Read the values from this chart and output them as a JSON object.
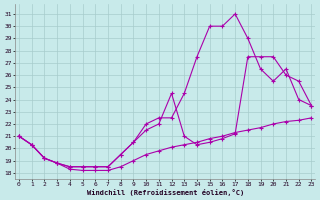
{
  "xlabel": "Windchill (Refroidissement éolien,°C)",
  "bg_color": "#c8eaea",
  "grid_color": "#a8cccc",
  "line_color": "#aa00aa",
  "x_ticks": [
    0,
    1,
    2,
    3,
    4,
    5,
    6,
    7,
    8,
    9,
    10,
    11,
    12,
    13,
    14,
    15,
    16,
    17,
    18,
    19,
    20,
    21,
    22,
    23
  ],
  "y_ticks": [
    18,
    19,
    20,
    21,
    22,
    23,
    24,
    25,
    26,
    27,
    28,
    29,
    30,
    31
  ],
  "xlim": [
    -0.3,
    23.3
  ],
  "ylim": [
    17.5,
    31.8
  ],
  "line1_x": [
    0,
    1,
    2,
    3,
    4,
    5,
    6,
    7,
    8,
    9,
    10,
    11,
    12,
    13,
    14,
    15,
    16,
    17,
    18,
    19,
    20,
    21,
    22,
    23
  ],
  "line1_y": [
    21.0,
    20.3,
    19.2,
    18.8,
    18.3,
    18.2,
    18.2,
    18.2,
    18.5,
    19.0,
    19.5,
    19.8,
    20.1,
    20.3,
    20.5,
    20.8,
    21.0,
    21.3,
    21.5,
    21.7,
    22.0,
    22.2,
    22.3,
    22.5
  ],
  "line2_x": [
    0,
    1,
    2,
    3,
    4,
    5,
    6,
    7,
    8,
    9,
    10,
    11,
    12,
    13,
    14,
    15,
    16,
    17,
    18,
    19,
    20,
    21,
    22,
    23
  ],
  "line2_y": [
    21.0,
    20.3,
    19.2,
    18.8,
    18.5,
    18.5,
    18.5,
    18.5,
    19.5,
    20.5,
    22.0,
    22.5,
    22.5,
    24.5,
    27.5,
    30.0,
    30.0,
    31.0,
    29.0,
    26.5,
    25.5,
    26.5,
    24.0,
    23.5
  ],
  "line3_x": [
    0,
    1,
    2,
    3,
    4,
    5,
    6,
    7,
    8,
    9,
    10,
    11,
    12,
    13,
    14,
    15,
    16,
    17,
    18,
    19,
    20,
    21,
    22,
    23
  ],
  "line3_y": [
    21.0,
    20.3,
    19.2,
    18.8,
    18.5,
    18.5,
    18.5,
    18.5,
    19.5,
    20.5,
    21.5,
    22.0,
    24.5,
    21.0,
    20.3,
    20.5,
    20.8,
    21.2,
    27.5,
    27.5,
    27.5,
    26.0,
    25.5,
    23.5
  ]
}
